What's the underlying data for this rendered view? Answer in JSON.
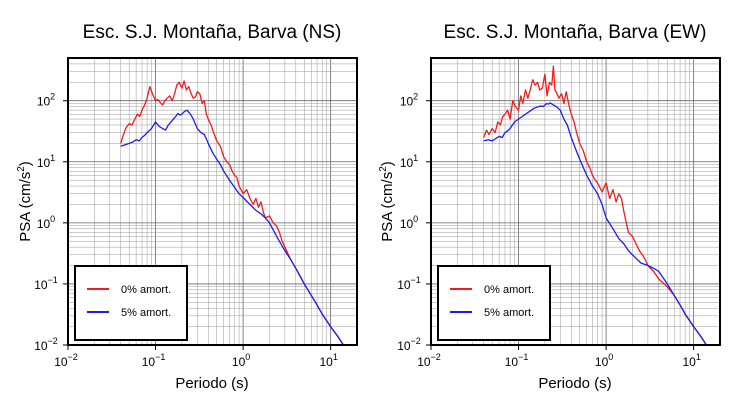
{
  "chart_data": [
    {
      "type": "line",
      "title": "Esc. S.J. Montaña, Barva (NS)",
      "xlabel": "Periodo (s)",
      "ylabel": "PSA (cm/s²)",
      "xscale": "log",
      "yscale": "log",
      "xlim": [
        0.01,
        20
      ],
      "ylim": [
        0.01,
        500
      ],
      "grid": true,
      "legend_position": "bottom-left",
      "x_ticks": [
        {
          "v": 0.01,
          "b": "10",
          "e": "−2"
        },
        {
          "v": 0.1,
          "b": "10",
          "e": "−1"
        },
        {
          "v": 1,
          "b": "10",
          "e": "0"
        },
        {
          "v": 10,
          "b": "10",
          "e": "1"
        }
      ],
      "y_ticks": [
        {
          "v": 0.01,
          "t": "10−2"
        },
        {
          "v": 0.1,
          "t": "10−1"
        },
        {
          "v": 1,
          "t": "10"
        },
        {
          "v": 10,
          "t": "10"
        },
        {
          "v": 100,
          "t": "10"
        }
      ],
      "series": [
        {
          "name": "0% amort.",
          "color": "#ee1c1c",
          "x": [
            0.04,
            0.043,
            0.046,
            0.05,
            0.054,
            0.058,
            0.062,
            0.066,
            0.07,
            0.075,
            0.08,
            0.086,
            0.092,
            0.1,
            0.106,
            0.112,
            0.12,
            0.128,
            0.136,
            0.145,
            0.155,
            0.165,
            0.175,
            0.187,
            0.2,
            0.212,
            0.225,
            0.24,
            0.255,
            0.27,
            0.285,
            0.3,
            0.32,
            0.34,
            0.36,
            0.38,
            0.4,
            0.43,
            0.46,
            0.5,
            0.55,
            0.6,
            0.65,
            0.7,
            0.75,
            0.8,
            0.85,
            0.9,
            1.0,
            1.1,
            1.2,
            1.3,
            1.4,
            1.5,
            1.6,
            1.7,
            1.8,
            2.0,
            2.2,
            2.4,
            2.6,
            2.8,
            3.0,
            3.5,
            4.0,
            5.0,
            6.0,
            7.0,
            8.0,
            10.0,
            12.0,
            14.0,
            15.0
          ],
          "y": [
            20,
            28,
            36,
            42,
            40,
            50,
            60,
            55,
            70,
            85,
            110,
            170,
            130,
            100,
            105,
            95,
            85,
            100,
            110,
            120,
            100,
            130,
            180,
            200,
            160,
            210,
            150,
            170,
            130,
            110,
            115,
            140,
            130,
            90,
            100,
            60,
            50,
            40,
            30,
            22,
            18,
            12,
            10,
            9,
            7,
            6,
            5.5,
            4,
            3,
            3.5,
            2.5,
            2.0,
            2.5,
            1.8,
            2.2,
            1.5,
            1.2,
            1.3,
            1.0,
            0.9,
            0.7,
            0.5,
            0.4,
            0.25,
            0.18,
            0.1,
            0.065,
            0.045,
            0.032,
            0.02,
            0.014,
            0.01,
            0.0085
          ]
        },
        {
          "name": "5% amort.",
          "color": "#1c1cee",
          "x": [
            0.04,
            0.045,
            0.05,
            0.055,
            0.06,
            0.065,
            0.07,
            0.075,
            0.08,
            0.09,
            0.1,
            0.11,
            0.12,
            0.13,
            0.14,
            0.15,
            0.16,
            0.17,
            0.18,
            0.19,
            0.2,
            0.21,
            0.22,
            0.23,
            0.25,
            0.27,
            0.3,
            0.33,
            0.36,
            0.4,
            0.45,
            0.5,
            0.55,
            0.6,
            0.7,
            0.8,
            0.9,
            1.0,
            1.2,
            1.4,
            1.6,
            1.8,
            2.0,
            2.5,
            3.0,
            3.5,
            4.0,
            5.0,
            6.0,
            7.0,
            8.0,
            10.0,
            12.0,
            14.0,
            15.0
          ],
          "y": [
            18,
            19,
            20,
            21,
            23,
            22,
            25,
            27,
            30,
            35,
            45,
            38,
            35,
            33,
            40,
            45,
            50,
            55,
            62,
            58,
            60,
            65,
            68,
            70,
            60,
            50,
            35,
            30,
            28,
            20,
            14,
            11,
            9,
            7,
            5,
            3.8,
            3,
            2.6,
            2.0,
            1.6,
            1.4,
            1.2,
            1.0,
            0.55,
            0.35,
            0.25,
            0.18,
            0.1,
            0.065,
            0.045,
            0.032,
            0.02,
            0.014,
            0.01,
            0.0085
          ]
        }
      ]
    },
    {
      "type": "line",
      "title": "Esc. S.J. Montaña, Barva (EW)",
      "xlabel": "Periodo (s)",
      "ylabel": "PSA (cm/s²)",
      "xscale": "log",
      "yscale": "log",
      "xlim": [
        0.01,
        20
      ],
      "ylim": [
        0.01,
        500
      ],
      "grid": true,
      "legend_position": "bottom-left",
      "x_ticks": [
        {
          "v": 0.01,
          "b": "10",
          "e": "−2"
        },
        {
          "v": 0.1,
          "b": "10",
          "e": "−1"
        },
        {
          "v": 1,
          "b": "10",
          "e": "0"
        },
        {
          "v": 10,
          "b": "10",
          "e": "1"
        }
      ],
      "y_ticks": [
        {
          "v": 0.01,
          "t": "10−2"
        },
        {
          "v": 0.1,
          "t": "10−1"
        },
        {
          "v": 1,
          "t": "10"
        },
        {
          "v": 10,
          "t": "10"
        },
        {
          "v": 100,
          "t": "10"
        }
      ],
      "series": [
        {
          "name": "0% amort.",
          "color": "#ee1c1c",
          "x": [
            0.04,
            0.043,
            0.046,
            0.05,
            0.054,
            0.058,
            0.062,
            0.066,
            0.07,
            0.075,
            0.08,
            0.086,
            0.092,
            0.1,
            0.106,
            0.112,
            0.12,
            0.128,
            0.136,
            0.145,
            0.155,
            0.165,
            0.175,
            0.187,
            0.2,
            0.212,
            0.225,
            0.24,
            0.25,
            0.26,
            0.275,
            0.29,
            0.31,
            0.33,
            0.35,
            0.38,
            0.4,
            0.43,
            0.46,
            0.5,
            0.55,
            0.6,
            0.65,
            0.7,
            0.75,
            0.8,
            0.9,
            1.0,
            1.1,
            1.2,
            1.3,
            1.4,
            1.5,
            1.6,
            1.7,
            1.8,
            2.0,
            2.2,
            2.4,
            2.6,
            2.8,
            3.0,
            3.5,
            4.0,
            5.0,
            6.0,
            7.0,
            8.0,
            10.0,
            12.0,
            14.0,
            15.0
          ],
          "y": [
            25,
            33,
            28,
            35,
            30,
            45,
            40,
            55,
            60,
            70,
            50,
            100,
            80,
            70,
            120,
            90,
            150,
            110,
            150,
            220,
            180,
            200,
            150,
            160,
            270,
            120,
            200,
            180,
            370,
            150,
            130,
            110,
            130,
            90,
            140,
            80,
            60,
            45,
            30,
            20,
            15,
            10,
            8,
            6,
            5,
            4.5,
            3.2,
            4.5,
            2.5,
            3.5,
            2.2,
            3.0,
            2.5,
            1.5,
            1.0,
            0.7,
            0.6,
            0.45,
            0.35,
            0.3,
            0.25,
            0.2,
            0.16,
            0.12,
            0.09,
            0.065,
            0.045,
            0.032,
            0.02,
            0.014,
            0.01,
            0.0085
          ]
        },
        {
          "name": "5% amort.",
          "color": "#1c1cee",
          "x": [
            0.04,
            0.045,
            0.05,
            0.055,
            0.06,
            0.065,
            0.07,
            0.075,
            0.08,
            0.09,
            0.1,
            0.11,
            0.12,
            0.13,
            0.14,
            0.15,
            0.16,
            0.17,
            0.18,
            0.19,
            0.2,
            0.21,
            0.22,
            0.23,
            0.25,
            0.27,
            0.3,
            0.33,
            0.36,
            0.4,
            0.45,
            0.5,
            0.55,
            0.6,
            0.7,
            0.8,
            0.9,
            1.0,
            1.2,
            1.4,
            1.6,
            1.8,
            2.0,
            2.5,
            3.0,
            3.5,
            4.0,
            5.0,
            6.0,
            7.0,
            8.0,
            10.0,
            12.0,
            14.0,
            15.0
          ],
          "y": [
            22,
            23,
            22,
            24,
            26,
            25,
            30,
            32,
            35,
            45,
            50,
            55,
            60,
            65,
            70,
            75,
            78,
            80,
            82,
            80,
            85,
            90,
            88,
            92,
            85,
            80,
            70,
            50,
            40,
            25,
            16,
            11,
            8,
            6,
            4,
            3,
            2.0,
            1.2,
            0.8,
            0.55,
            0.45,
            0.35,
            0.3,
            0.22,
            0.2,
            0.18,
            0.16,
            0.1,
            0.065,
            0.045,
            0.032,
            0.02,
            0.014,
            0.01,
            0.0085
          ]
        }
      ]
    }
  ]
}
